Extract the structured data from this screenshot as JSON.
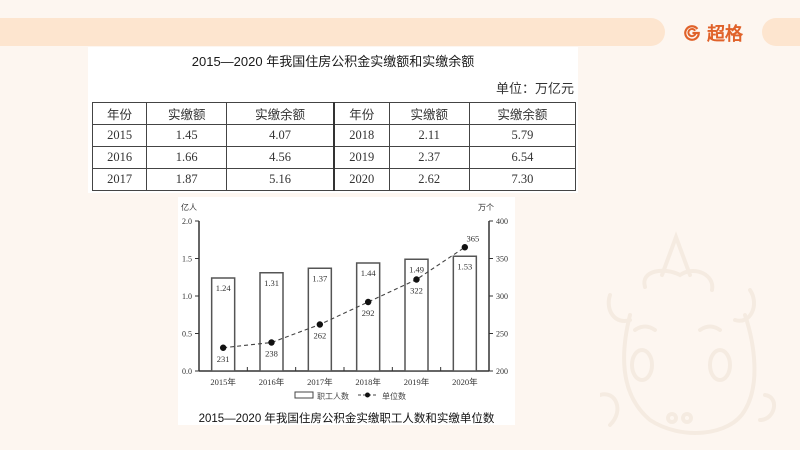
{
  "header": {
    "brand": "超格",
    "logo_icon": "brand-g-icon",
    "accent_color": "#e0622a",
    "bar_color": "#fde5cf"
  },
  "table": {
    "title": "2015—2020 年我国住房公积金实缴额和实缴余额",
    "unit": "单位：万亿元",
    "headers": [
      "年份",
      "实缴额",
      "实缴余额",
      "年份",
      "实缴额",
      "实缴余额"
    ],
    "rows": [
      [
        "2015",
        "1.45",
        "4.07",
        "2018",
        "2.11",
        "5.79"
      ],
      [
        "2016",
        "1.66",
        "4.56",
        "2019",
        "2.37",
        "6.54"
      ],
      [
        "2017",
        "1.87",
        "5.16",
        "2020",
        "2.62",
        "7.30"
      ]
    ]
  },
  "chart_data": {
    "type": "bar+line",
    "title": "2015—2020 年我国住房公积金实缴职工人数和实缴单位数",
    "categories": [
      "2015年",
      "2016年",
      "2017年",
      "2018年",
      "2019年",
      "2020年"
    ],
    "series": [
      {
        "name": "职工人数",
        "type": "bar",
        "axis": "left",
        "unit": "亿人",
        "values": [
          1.24,
          1.31,
          1.37,
          1.44,
          1.49,
          1.53
        ]
      },
      {
        "name": "单位数",
        "type": "line",
        "style": "dashed",
        "marker": "filled-circle",
        "axis": "right",
        "unit": "万个",
        "values": [
          231,
          238,
          262,
          292,
          322,
          365
        ]
      }
    ],
    "y_left": {
      "label": "亿人",
      "range": [
        0,
        2.0
      ],
      "ticks": [
        "0.0",
        "0.5",
        "1.0",
        "1.5",
        "2.0"
      ]
    },
    "y_right": {
      "label": "万个",
      "range": [
        200,
        400
      ],
      "ticks": [
        "200",
        "250",
        "300",
        "350",
        "400"
      ]
    },
    "legend": {
      "position": "bottom",
      "entries": [
        "职工人数",
        "单位数"
      ]
    },
    "grid": false
  }
}
